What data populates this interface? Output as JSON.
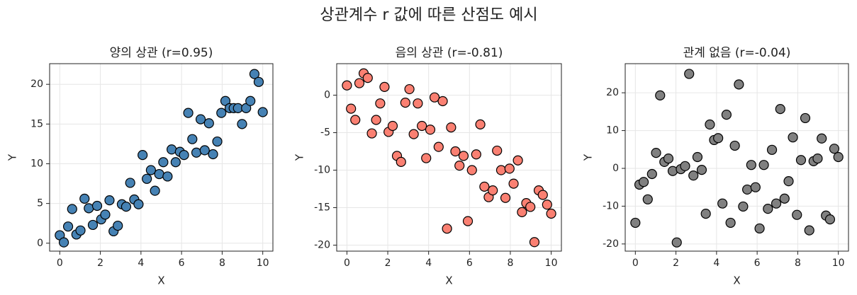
{
  "title": "상관계수 r 값에 따른 산점도 예시",
  "chart_data": [
    {
      "type": "scatter",
      "title": "양의 상관 (r=0.95)",
      "xlabel": "X",
      "ylabel": "Y",
      "color": "#4682b4",
      "grid": true,
      "xlim": [
        -0.5,
        10.5
      ],
      "ylim": [
        -1,
        22.6
      ],
      "xticks": [
        0,
        2,
        4,
        6,
        8,
        10
      ],
      "yticks": [
        0,
        5,
        10,
        15,
        20
      ],
      "x": [
        0,
        0.2,
        0.41,
        0.61,
        0.82,
        1.02,
        1.22,
        1.43,
        1.63,
        1.84,
        2.04,
        2.24,
        2.45,
        2.65,
        2.86,
        3.06,
        3.27,
        3.47,
        3.67,
        3.88,
        4.08,
        4.29,
        4.49,
        4.69,
        4.9,
        5.1,
        5.31,
        5.51,
        5.71,
        5.92,
        6.12,
        6.33,
        6.53,
        6.73,
        6.94,
        7.14,
        7.35,
        7.55,
        7.76,
        7.96,
        8.16,
        8.37,
        8.57,
        8.78,
        8.98,
        9.18,
        9.39,
        9.59,
        9.8,
        10
      ],
      "values": [
        1.0,
        0.1,
        2.1,
        4.3,
        1.1,
        1.6,
        5.6,
        4.4,
        2.3,
        4.7,
        3.0,
        3.6,
        5.4,
        1.5,
        2.2,
        4.9,
        4.6,
        7.6,
        5.5,
        4.9,
        11.1,
        8.1,
        9.2,
        6.6,
        8.7,
        10.2,
        8.4,
        11.8,
        10.2,
        11.5,
        11.1,
        16.4,
        13.1,
        11.4,
        15.6,
        11.7,
        15.1,
        11.2,
        12.8,
        16.4,
        17.9,
        17.0,
        17.0,
        17.0,
        15.0,
        17.0,
        17.9,
        21.3,
        20.3,
        16.5
      ]
    },
    {
      "type": "scatter",
      "title": "음의 상관 (r=-0.81)",
      "xlabel": "X",
      "ylabel": "Y",
      "color": "#fa8072",
      "grid": true,
      "xlim": [
        -0.5,
        10.5
      ],
      "ylim": [
        -20.8,
        4.2
      ],
      "xticks": [
        0,
        2,
        4,
        6,
        8,
        10
      ],
      "yticks": [
        -20,
        -15,
        -10,
        -5,
        0
      ],
      "x": [
        0,
        0.2,
        0.41,
        0.61,
        0.82,
        1.02,
        1.22,
        1.43,
        1.63,
        1.84,
        2.04,
        2.24,
        2.45,
        2.65,
        2.86,
        3.06,
        3.27,
        3.47,
        3.67,
        3.88,
        4.08,
        4.29,
        4.49,
        4.69,
        4.9,
        5.1,
        5.31,
        5.51,
        5.71,
        5.92,
        6.12,
        6.33,
        6.53,
        6.73,
        6.94,
        7.14,
        7.35,
        7.55,
        7.76,
        7.96,
        8.16,
        8.37,
        8.57,
        8.78,
        8.98,
        9.18,
        9.39,
        9.59,
        9.8,
        10
      ],
      "values": [
        1.3,
        -1.8,
        -3.3,
        1.6,
        2.9,
        2.3,
        -5.1,
        -3.3,
        -1.1,
        1.1,
        -4.9,
        -4.1,
        -8.1,
        -8.9,
        -1.0,
        0.8,
        -5.2,
        -1.1,
        -4.1,
        -8.4,
        -4.6,
        -0.3,
        -6.9,
        -0.8,
        -17.8,
        -4.3,
        -7.5,
        -9.4,
        -8.1,
        -16.8,
        -10.0,
        -7.9,
        -3.9,
        -12.2,
        -13.6,
        -12.7,
        -7.4,
        -10.0,
        -13.7,
        -9.8,
        -11.8,
        -8.7,
        -15.6,
        -14.4,
        -14.9,
        -19.6,
        -12.7,
        -13.3,
        -14.6,
        -15.8
      ]
    },
    {
      "type": "scatter",
      "title": "관계 없음 (r=-0.04)",
      "xlabel": "X",
      "ylabel": "Y",
      "color": "#808080",
      "grid": true,
      "xlim": [
        -0.5,
        10.5
      ],
      "ylim": [
        -21.9,
        27.7
      ],
      "xticks": [
        0,
        2,
        4,
        6,
        8,
        10
      ],
      "yticks": [
        -20,
        -10,
        0,
        10,
        20
      ],
      "x": [
        0,
        0.2,
        0.41,
        0.61,
        0.82,
        1.02,
        1.22,
        1.43,
        1.63,
        1.84,
        2.04,
        2.24,
        2.45,
        2.65,
        2.86,
        3.06,
        3.27,
        3.47,
        3.67,
        3.88,
        4.08,
        4.29,
        4.49,
        4.69,
        4.9,
        5.1,
        5.31,
        5.51,
        5.71,
        5.92,
        6.12,
        6.33,
        6.53,
        6.73,
        6.94,
        7.14,
        7.35,
        7.55,
        7.76,
        7.96,
        8.16,
        8.37,
        8.57,
        8.78,
        8.98,
        9.18,
        9.39,
        9.59,
        9.8,
        10
      ],
      "values": [
        -14.4,
        -4.3,
        -3.6,
        -8.2,
        -1.5,
        4.1,
        19.3,
        1.7,
        2.6,
        -0.7,
        -19.6,
        -0.2,
        0.6,
        25.0,
        -1.9,
        3.0,
        -0.4,
        -12.0,
        11.6,
        7.5,
        8.0,
        -9.3,
        14.2,
        -14.4,
        6.0,
        22.2,
        -10.1,
        -5.6,
        0.9,
        -5.0,
        -15.9,
        0.9,
        -10.7,
        4.9,
        -9.3,
        15.7,
        -8.0,
        -3.4,
        8.2,
        -12.3,
        2.2,
        13.3,
        -16.4,
        1.9,
        2.6,
        7.9,
        -12.5,
        -13.5,
        5.2,
        3.0
      ]
    }
  ]
}
